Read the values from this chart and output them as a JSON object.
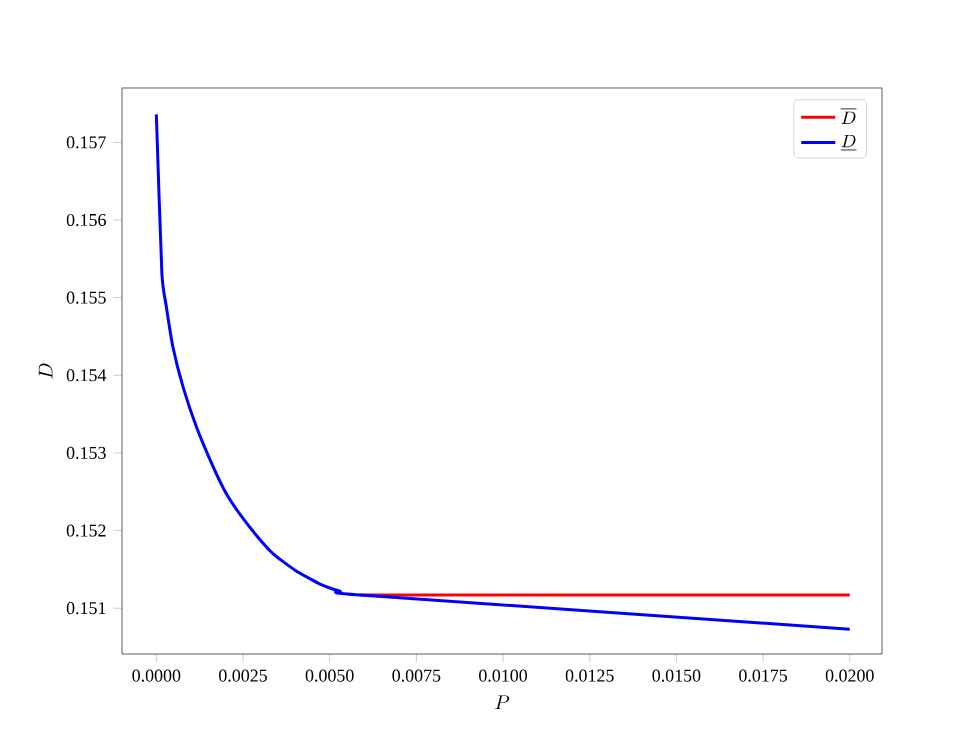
{
  "chart_data": {
    "type": "line",
    "xlabel": "P",
    "ylabel": "D",
    "xlim": [
      -0.00099,
      0.02093
    ],
    "ylim": [
      0.15041,
      0.1577
    ],
    "xticks": [
      {
        "value": 0,
        "label": "0.0000"
      },
      {
        "value": 0.0025,
        "label": "0.0025"
      },
      {
        "value": 0.005,
        "label": "0.0050"
      },
      {
        "value": 0.0075,
        "label": "0.0075"
      },
      {
        "value": 0.01,
        "label": "0.0100"
      },
      {
        "value": 0.0125,
        "label": "0.0125"
      },
      {
        "value": 0.015,
        "label": "0.0150"
      },
      {
        "value": 0.0175,
        "label": "0.0175"
      },
      {
        "value": 0.02,
        "label": "0.0200"
      }
    ],
    "yticks": [
      0.151,
      0.152,
      0.153,
      0.154,
      0.155,
      0.156,
      0.157
    ],
    "legend": "top right",
    "grid": false,
    "marker": "none",
    "line_style": "solid",
    "series": [
      {
        "name": "\\overline{D}",
        "color": "#ff0000",
        "x": [
          0.00588,
          0.02
        ],
        "values": [
          0.15117,
          0.15117
        ]
      },
      {
        "name": "\\underline{D}",
        "color": "#0000ff",
        "x": [
          0,
          0.00016,
          0.00029,
          0.00048,
          0.00077,
          0.00116,
          0.00164,
          0.002,
          0.00241,
          0.0029,
          0.00337,
          0.004,
          0.00472,
          0.0053,
          0.00588,
          0.02
        ],
        "values": [
          0.15736,
          0.15531,
          0.15488,
          0.15436,
          0.15385,
          0.15333,
          0.15282,
          0.15249,
          0.15221,
          0.15193,
          0.1517,
          0.15149,
          0.15131,
          0.15122,
          0.15117,
          0.15073
        ]
      }
    ]
  }
}
